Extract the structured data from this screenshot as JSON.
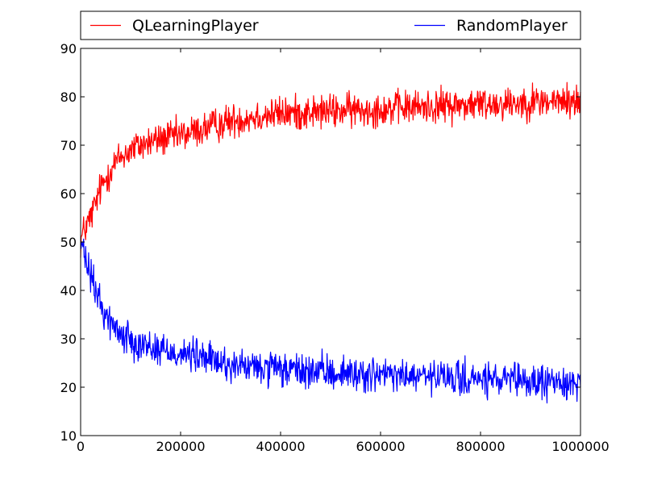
{
  "chart_data": {
    "type": "line",
    "title": "",
    "xlabel": "",
    "ylabel": "",
    "xlim": [
      0,
      1000000
    ],
    "ylim": [
      10,
      90
    ],
    "x_ticks": [
      0,
      200000,
      400000,
      600000,
      800000,
      1000000
    ],
    "x_tick_labels": [
      "0",
      "200000",
      "400000",
      "600000",
      "800000",
      "1000000"
    ],
    "y_ticks": [
      10,
      20,
      30,
      40,
      50,
      60,
      70,
      80,
      90
    ],
    "y_tick_labels": [
      "10",
      "20",
      "30",
      "40",
      "50",
      "60",
      "70",
      "80",
      "90"
    ],
    "grid": false,
    "legend_position": "top, above plot, two columns",
    "sample_interval": 1000,
    "series": [
      {
        "name": "QLearningPlayer",
        "color": "#ff0000",
        "trend": [
          [
            0,
            50
          ],
          [
            5000,
            52
          ],
          [
            10000,
            53
          ],
          [
            20000,
            55
          ],
          [
            30000,
            58
          ],
          [
            40000,
            61
          ],
          [
            50000,
            63
          ],
          [
            60000,
            65
          ],
          [
            70000,
            66.5
          ],
          [
            80000,
            67.5
          ],
          [
            100000,
            69
          ],
          [
            120000,
            70
          ],
          [
            150000,
            71
          ],
          [
            200000,
            72
          ],
          [
            250000,
            73.5
          ],
          [
            300000,
            75
          ],
          [
            350000,
            76
          ],
          [
            400000,
            76.5
          ],
          [
            500000,
            77
          ],
          [
            600000,
            77.5
          ],
          [
            700000,
            78
          ],
          [
            800000,
            78.5
          ],
          [
            900000,
            79
          ],
          [
            1000000,
            79
          ]
        ],
        "noise_amplitude": 2.2
      },
      {
        "name": "RandomPlayer",
        "color": "#0000ff",
        "trend": [
          [
            0,
            50
          ],
          [
            5000,
            48
          ],
          [
            10000,
            46
          ],
          [
            20000,
            43
          ],
          [
            30000,
            40
          ],
          [
            40000,
            37
          ],
          [
            50000,
            35
          ],
          [
            60000,
            33.5
          ],
          [
            70000,
            32
          ],
          [
            80000,
            31
          ],
          [
            100000,
            30
          ],
          [
            120000,
            29
          ],
          [
            150000,
            28
          ],
          [
            200000,
            27
          ],
          [
            250000,
            26
          ],
          [
            300000,
            24.5
          ],
          [
            350000,
            24
          ],
          [
            400000,
            23.5
          ],
          [
            500000,
            23
          ],
          [
            600000,
            22.5
          ],
          [
            700000,
            22
          ],
          [
            800000,
            21.5
          ],
          [
            900000,
            21
          ],
          [
            1000000,
            21
          ]
        ],
        "noise_amplitude": 2.2
      }
    ]
  }
}
